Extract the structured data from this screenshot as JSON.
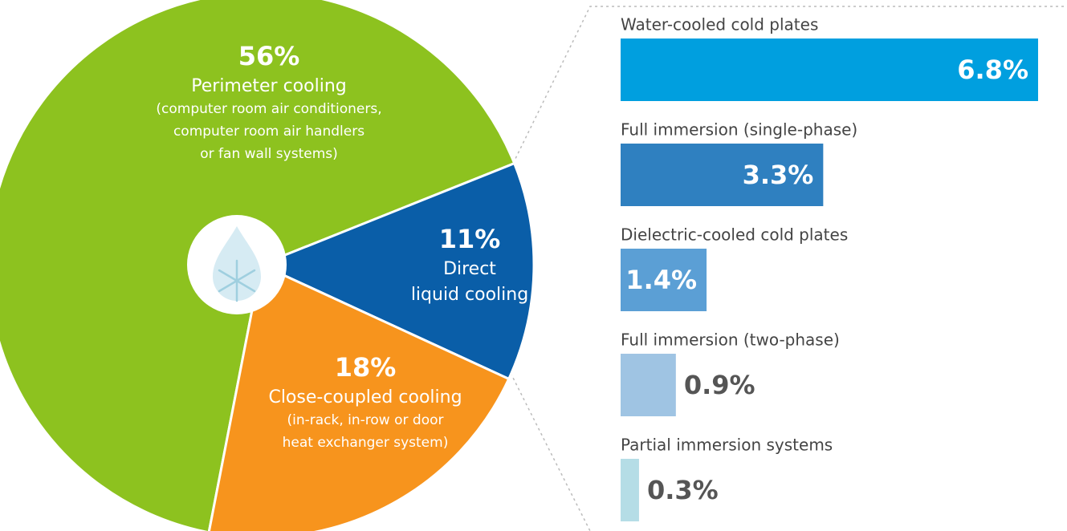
{
  "chart_data": [
    {
      "type": "pie",
      "categories": [
        "Perimeter cooling",
        "Direct liquid cooling",
        "Close-coupled cooling"
      ],
      "values": [
        56,
        11,
        18
      ],
      "value_labels": [
        "56%",
        "11%",
        "18%"
      ],
      "colors": [
        "#8dc21f",
        "#0a5ea8",
        "#f7941d"
      ],
      "details": [
        [
          "(computer room air conditioners,",
          "computer room air handlers",
          "or fan wall systems)"
        ],
        [],
        [
          "(in-rack, in-row or door",
          "heat exchanger system)"
        ]
      ],
      "name_lines": [
        [
          "Perimeter cooling"
        ],
        [
          "Direct",
          "liquid cooling"
        ],
        [
          "Close-coupled cooling"
        ]
      ]
    },
    {
      "type": "bar",
      "orientation": "horizontal",
      "categories": [
        "Water-cooled cold plates",
        "Full immersion (single-phase)",
        "Dielectric-cooled cold plates",
        "Full immersion (two-phase)",
        "Partial immersion systems"
      ],
      "values": [
        6.8,
        3.3,
        1.4,
        0.9,
        0.3
      ],
      "value_labels": [
        "6.8%",
        "3.3%",
        "1.4%",
        "0.9%",
        "0.3%"
      ],
      "colors": [
        "#009fdf",
        "#2f80c0",
        "#5b9fd5",
        "#9fc4e3",
        "#b5dde6"
      ]
    }
  ]
}
